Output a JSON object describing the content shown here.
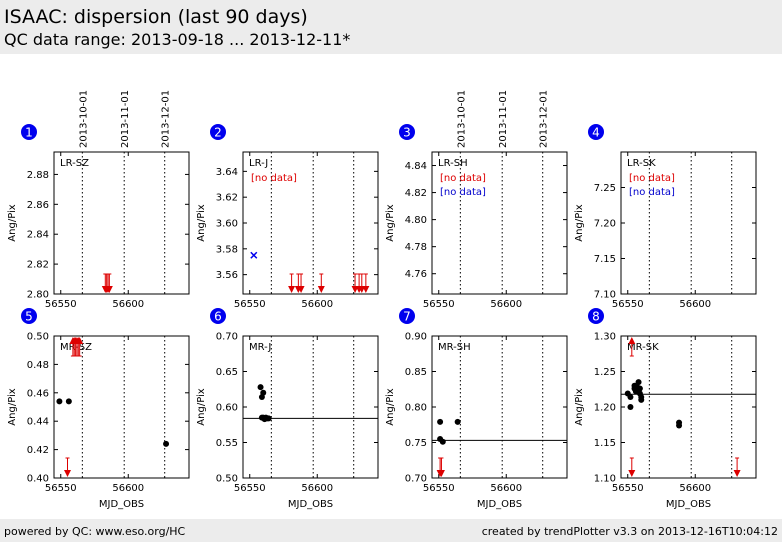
{
  "header": {
    "title": "ISAAC: dispersion (last 90 days)",
    "subtitle": "QC data range: 2013-09-18 ... 2013-12-11*"
  },
  "footer": {
    "left": "powered by QC: www.eso.org/HC",
    "right": "created by trendPlotter v3.3 on 2013-12-16T10:04:12"
  },
  "date_markers": [
    {
      "label": "2013-10-01",
      "mjd": 56566
    },
    {
      "label": "2013-11-01",
      "mjd": 56597
    },
    {
      "label": "2013-12-01",
      "mjd": 56627
    }
  ],
  "colors": {
    "badge": "#0000ee",
    "outlier": "#dd0000",
    "nodata_primary": "#dd0000",
    "nodata_secondary": "#0000cc",
    "cross": "#0000ee",
    "point": "#000000"
  },
  "chart_data": [
    {
      "panel": "1",
      "type": "scatter",
      "label": "LR-SZ",
      "ylabel": "Ang/Pix",
      "xlabel": "",
      "xlim": [
        56545,
        56645
      ],
      "ylim": [
        2.8,
        2.895
      ],
      "yticks": [
        "2.80",
        "2.82",
        "2.84",
        "2.86",
        "2.88"
      ],
      "xticks": [
        "56550",
        "56600"
      ],
      "show_dates": true,
      "nodata": [],
      "points": [],
      "crosses": [],
      "ref_line": null,
      "outliers": [
        {
          "x": 56583,
          "dir": "down"
        },
        {
          "x": 56584,
          "dir": "down"
        },
        {
          "x": 56585,
          "dir": "down"
        },
        {
          "x": 56586,
          "dir": "down"
        }
      ]
    },
    {
      "panel": "2",
      "type": "scatter",
      "label": "LR-J",
      "ylabel": "Ang/Pix",
      "xlabel": "",
      "xlim": [
        56545,
        56645
      ],
      "ylim": [
        3.545,
        3.655
      ],
      "yticks": [
        "3.56",
        "3.58",
        "3.60",
        "3.62",
        "3.64"
      ],
      "xticks": [
        "56550",
        "56600"
      ],
      "show_dates": false,
      "nodata": [
        "[no data]"
      ],
      "points": [],
      "ref_line": null,
      "crosses": [
        {
          "x": 56553,
          "y": 3.575
        }
      ],
      "outliers": [
        {
          "x": 56581,
          "dir": "down"
        },
        {
          "x": 56586,
          "dir": "down"
        },
        {
          "x": 56588,
          "dir": "down"
        },
        {
          "x": 56603,
          "dir": "down"
        },
        {
          "x": 56628,
          "dir": "down"
        },
        {
          "x": 56631,
          "dir": "down"
        },
        {
          "x": 56633,
          "dir": "down"
        },
        {
          "x": 56636,
          "dir": "down"
        }
      ]
    },
    {
      "panel": "3",
      "type": "scatter",
      "label": "LR-SH",
      "ylabel": "Ang/Pix",
      "xlabel": "",
      "xlim": [
        56545,
        56645
      ],
      "ylim": [
        4.745,
        4.85
      ],
      "yticks": [
        "4.76",
        "4.78",
        "4.80",
        "4.82",
        "4.84"
      ],
      "xticks": [
        "56550",
        "56600"
      ],
      "show_dates": true,
      "nodata": [
        "[no data]",
        "[no data]"
      ],
      "points": [],
      "crosses": [],
      "outliers": [],
      "ref_line": null
    },
    {
      "panel": "4",
      "type": "scatter",
      "label": "LR-SK",
      "ylabel": "Ang/Pix",
      "xlabel": "",
      "xlim": [
        56545,
        56645
      ],
      "ylim": [
        7.1,
        7.3
      ],
      "yticks": [
        "7.10",
        "7.15",
        "7.20",
        "7.25"
      ],
      "xticks": [
        "56550",
        "56600"
      ],
      "show_dates": false,
      "nodata": [
        "[no data]",
        "[no data]"
      ],
      "points": [],
      "crosses": [],
      "outliers": [],
      "ref_line": null
    },
    {
      "panel": "5",
      "type": "scatter",
      "label": "MR-SZ",
      "ylabel": "Ang/Pix",
      "xlabel": "MJD_OBS",
      "xlim": [
        56545,
        56645
      ],
      "ylim": [
        0.4,
        0.5
      ],
      "yticks": [
        "0.40",
        "0.42",
        "0.44",
        "0.46",
        "0.48",
        "0.50"
      ],
      "xticks": [
        "56550",
        "56600"
      ],
      "show_dates": false,
      "nodata": [],
      "crosses": [],
      "ref_line": null,
      "points": [
        {
          "x": 56549,
          "y": 0.454
        },
        {
          "x": 56556,
          "y": 0.454
        },
        {
          "x": 56628,
          "y": 0.424
        }
      ],
      "outliers": [
        {
          "x": 56555,
          "dir": "down"
        },
        {
          "x": 56559,
          "dir": "up"
        },
        {
          "x": 56560,
          "dir": "up"
        },
        {
          "x": 56561,
          "dir": "up"
        },
        {
          "x": 56562,
          "dir": "up"
        },
        {
          "x": 56563,
          "dir": "up"
        },
        {
          "x": 56564,
          "dir": "up"
        }
      ]
    },
    {
      "panel": "6",
      "type": "scatter",
      "label": "MR-J",
      "ylabel": "Ang/Pix",
      "xlabel": "MJD_OBS",
      "xlim": [
        56545,
        56645
      ],
      "ylim": [
        0.5,
        0.7
      ],
      "yticks": [
        "0.50",
        "0.55",
        "0.60",
        "0.65",
        "0.70"
      ],
      "xticks": [
        "56550",
        "56600"
      ],
      "show_dates": false,
      "nodata": [],
      "crosses": [],
      "outliers": [],
      "ref_line": 0.584,
      "points": [
        {
          "x": 56558,
          "y": 0.628
        },
        {
          "x": 56559,
          "y": 0.614
        },
        {
          "x": 56560,
          "y": 0.62
        },
        {
          "x": 56559,
          "y": 0.585
        },
        {
          "x": 56560,
          "y": 0.585
        },
        {
          "x": 56561,
          "y": 0.583
        },
        {
          "x": 56562,
          "y": 0.585
        },
        {
          "x": 56563,
          "y": 0.584
        },
        {
          "x": 56564,
          "y": 0.584
        }
      ]
    },
    {
      "panel": "7",
      "type": "scatter",
      "label": "MR-SH",
      "ylabel": "Ang/Pix",
      "xlabel": "MJD_OBS",
      "xlim": [
        56545,
        56645
      ],
      "ylim": [
        0.7,
        0.9
      ],
      "yticks": [
        "0.70",
        "0.75",
        "0.80",
        "0.85",
        "0.90"
      ],
      "xticks": [
        "56550",
        "56600"
      ],
      "show_dates": false,
      "nodata": [],
      "crosses": [],
      "ref_line": 0.753,
      "points": [
        {
          "x": 56551,
          "y": 0.779
        },
        {
          "x": 56551,
          "y": 0.755
        },
        {
          "x": 56553,
          "y": 0.751
        },
        {
          "x": 56564,
          "y": 0.779
        }
      ],
      "outliers": [
        {
          "x": 56551,
          "dir": "down"
        },
        {
          "x": 56552,
          "dir": "down"
        }
      ]
    },
    {
      "panel": "8",
      "type": "scatter",
      "label": "MR-SK",
      "ylabel": "Ang/Pix",
      "xlabel": "MJD_OBS",
      "xlim": [
        56545,
        56645
      ],
      "ylim": [
        1.1,
        1.3
      ],
      "yticks": [
        "1.10",
        "1.15",
        "1.20",
        "1.25",
        "1.30"
      ],
      "xticks": [
        "56550",
        "56600"
      ],
      "show_dates": false,
      "nodata": [],
      "crosses": [],
      "ref_line": 1.218,
      "points": [
        {
          "x": 56550,
          "y": 1.219
        },
        {
          "x": 56552,
          "y": 1.214
        },
        {
          "x": 56552,
          "y": 1.2
        },
        {
          "x": 56555,
          "y": 1.226
        },
        {
          "x": 56555,
          "y": 1.23
        },
        {
          "x": 56556,
          "y": 1.222
        },
        {
          "x": 56557,
          "y": 1.228
        },
        {
          "x": 56558,
          "y": 1.235
        },
        {
          "x": 56559,
          "y": 1.226
        },
        {
          "x": 56559,
          "y": 1.219
        },
        {
          "x": 56560,
          "y": 1.214
        },
        {
          "x": 56560,
          "y": 1.21
        },
        {
          "x": 56588,
          "y": 1.178
        },
        {
          "x": 56588,
          "y": 1.174
        }
      ],
      "outliers": [
        {
          "x": 56553,
          "dir": "up"
        },
        {
          "x": 56553,
          "dir": "down"
        },
        {
          "x": 56631,
          "dir": "down"
        }
      ]
    }
  ]
}
